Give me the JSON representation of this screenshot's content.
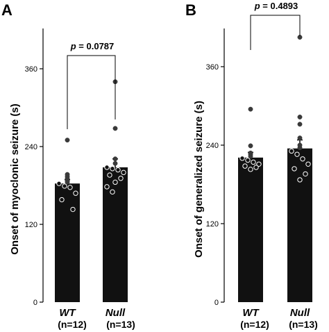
{
  "chart_data": [
    {
      "type": "bar",
      "panel": "A",
      "ylabel": "Onset of myoclonic seizure (s)",
      "ylim": [
        0,
        460
      ],
      "yticks": [
        0,
        120,
        240,
        360
      ],
      "categories": [
        "WT",
        "Null"
      ],
      "n_labels": [
        "(n=12)",
        "(n=13)"
      ],
      "values": [
        183,
        208
      ],
      "sem": [
        6,
        13
      ],
      "points": [
        [
          250,
          197,
          194,
          191,
          187,
          185,
          183,
          179,
          177,
          168,
          158,
          143
        ],
        [
          340,
          268,
          221,
          214,
          208,
          206,
          204,
          200,
          196,
          191,
          185,
          178,
          170
        ]
      ],
      "annotation": {
        "p": "p",
        "rest": " = 0.0787"
      },
      "bar_color": "#111111",
      "point_color": "#3a3a3a"
    },
    {
      "type": "bar",
      "panel": "B",
      "ylabel": "Onset of generalized seizure (s)",
      "ylim": [
        0,
        420
      ],
      "yticks": [
        0,
        120,
        240,
        360
      ],
      "categories": [
        "WT",
        "Null"
      ],
      "n_labels": [
        "(n=12)",
        "(n=13)"
      ],
      "values": [
        221,
        235
      ],
      "sem": [
        8,
        13
      ],
      "points": [
        [
          295,
          239,
          228,
          226,
          223,
          220,
          217,
          214,
          211,
          208,
          206,
          203
        ],
        [
          405,
          283,
          272,
          251,
          240,
          236,
          231,
          226,
          219,
          211,
          204,
          196,
          187
        ]
      ],
      "annotation": {
        "p": "p",
        "rest": " = 0.4893"
      },
      "bar_color": "#111111",
      "point_color": "#3a3a3a"
    }
  ]
}
